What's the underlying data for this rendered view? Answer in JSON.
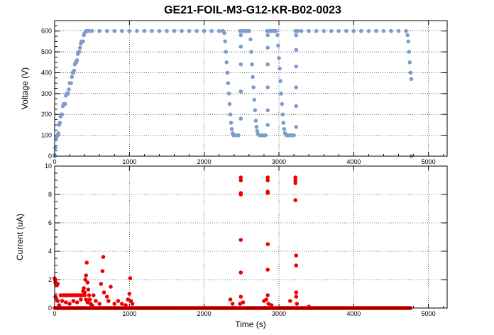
{
  "chart_data": [
    {
      "type": "scatter",
      "title": "GE21-FOIL-M3-G12-KR-B02-0023",
      "xlabel": "",
      "ylabel": "Voltage (V)",
      "xlim": [
        0,
        5250
      ],
      "ylim": [
        0,
        650
      ],
      "grid": true,
      "marker_color": "#7f9ccf",
      "x_ticks": [
        "0",
        "1000",
        "2000",
        "3000",
        "4000",
        "5000"
      ],
      "y_ticks": [
        "0",
        "100",
        "200",
        "300",
        "400",
        "500",
        "600"
      ],
      "points": [
        [
          0,
          0
        ],
        [
          0,
          5
        ],
        [
          10,
          40
        ],
        [
          20,
          80
        ],
        [
          30,
          95
        ],
        [
          40,
          100
        ],
        [
          50,
          110
        ],
        [
          60,
          150
        ],
        [
          70,
          160
        ],
        [
          80,
          190
        ],
        [
          90,
          200
        ],
        [
          100,
          200
        ],
        [
          110,
          240
        ],
        [
          120,
          250
        ],
        [
          130,
          250
        ],
        [
          140,
          250
        ],
        [
          150,
          290
        ],
        [
          160,
          300
        ],
        [
          170,
          300
        ],
        [
          180,
          300
        ],
        [
          190,
          320
        ],
        [
          200,
          350
        ],
        [
          210,
          350
        ],
        [
          220,
          350
        ],
        [
          230,
          380
        ],
        [
          240,
          400
        ],
        [
          250,
          400
        ],
        [
          260,
          410
        ],
        [
          270,
          440
        ],
        [
          280,
          450
        ],
        [
          290,
          450
        ],
        [
          300,
          460
        ],
        [
          310,
          490
        ],
        [
          320,
          500
        ],
        [
          330,
          500
        ],
        [
          340,
          520
        ],
        [
          350,
          540
        ],
        [
          360,
          550
        ],
        [
          370,
          550
        ],
        [
          380,
          550
        ],
        [
          390,
          580
        ],
        [
          400,
          590
        ],
        [
          420,
          600
        ],
        [
          440,
          600
        ],
        [
          460,
          600
        ],
        [
          500,
          600
        ],
        [
          600,
          600
        ],
        [
          700,
          600
        ],
        [
          800,
          600
        ],
        [
          900,
          600
        ],
        [
          1000,
          600
        ],
        [
          1100,
          600
        ],
        [
          1200,
          600
        ],
        [
          1300,
          600
        ],
        [
          1400,
          600
        ],
        [
          1500,
          600
        ],
        [
          1600,
          600
        ],
        [
          1700,
          600
        ],
        [
          1800,
          600
        ],
        [
          1900,
          600
        ],
        [
          2000,
          600
        ],
        [
          2100,
          600
        ],
        [
          2200,
          600
        ],
        [
          2250,
          600
        ],
        [
          2270,
          590
        ],
        [
          2280,
          550
        ],
        [
          2290,
          500
        ],
        [
          2300,
          450
        ],
        [
          2310,
          400
        ],
        [
          2320,
          350
        ],
        [
          2330,
          300
        ],
        [
          2340,
          250
        ],
        [
          2350,
          200
        ],
        [
          2360,
          160
        ],
        [
          2370,
          130
        ],
        [
          2380,
          110
        ],
        [
          2390,
          100
        ],
        [
          2400,
          100
        ],
        [
          2420,
          100
        ],
        [
          2440,
          100
        ],
        [
          2460,
          100
        ],
        [
          2480,
          600
        ],
        [
          2490,
          580
        ],
        [
          2490,
          525
        ],
        [
          2490,
          440
        ],
        [
          2490,
          310
        ],
        [
          2490,
          180
        ],
        [
          2500,
          600
        ],
        [
          2520,
          600
        ],
        [
          2550,
          600
        ],
        [
          2580,
          600
        ],
        [
          2600,
          600
        ],
        [
          2620,
          560
        ],
        [
          2630,
          500
        ],
        [
          2640,
          440
        ],
        [
          2650,
          380
        ],
        [
          2660,
          330
        ],
        [
          2670,
          270
        ],
        [
          2680,
          220
        ],
        [
          2690,
          170
        ],
        [
          2700,
          140
        ],
        [
          2710,
          120
        ],
        [
          2720,
          105
        ],
        [
          2740,
          100
        ],
        [
          2760,
          100
        ],
        [
          2780,
          100
        ],
        [
          2800,
          100
        ],
        [
          2820,
          100
        ],
        [
          2840,
          600
        ],
        [
          2850,
          580
        ],
        [
          2850,
          520
        ],
        [
          2850,
          440
        ],
        [
          2850,
          330
        ],
        [
          2850,
          220
        ],
        [
          2850,
          150
        ],
        [
          2870,
          600
        ],
        [
          2900,
          600
        ],
        [
          2920,
          600
        ],
        [
          2940,
          600
        ],
        [
          2960,
          600
        ],
        [
          2980,
          580
        ],
        [
          2990,
          530
        ],
        [
          3000,
          470
        ],
        [
          3010,
          420
        ],
        [
          3020,
          360
        ],
        [
          3030,
          300
        ],
        [
          3040,
          250
        ],
        [
          3050,
          200
        ],
        [
          3060,
          160
        ],
        [
          3070,
          130
        ],
        [
          3080,
          110
        ],
        [
          3100,
          100
        ],
        [
          3120,
          100
        ],
        [
          3140,
          100
        ],
        [
          3160,
          100
        ],
        [
          3180,
          100
        ],
        [
          3200,
          100
        ],
        [
          3220,
          600
        ],
        [
          3230,
          580
        ],
        [
          3230,
          510
        ],
        [
          3230,
          430
        ],
        [
          3230,
          330
        ],
        [
          3230,
          240
        ],
        [
          3230,
          140
        ],
        [
          3250,
          600
        ],
        [
          3300,
          600
        ],
        [
          3400,
          600
        ],
        [
          3500,
          600
        ],
        [
          3600,
          600
        ],
        [
          3700,
          600
        ],
        [
          3800,
          600
        ],
        [
          3900,
          600
        ],
        [
          4000,
          600
        ],
        [
          4100,
          600
        ],
        [
          4200,
          600
        ],
        [
          4300,
          600
        ],
        [
          4400,
          600
        ],
        [
          4500,
          600
        ],
        [
          4600,
          600
        ],
        [
          4700,
          600
        ],
        [
          4720,
          580
        ],
        [
          4730,
          550
        ],
        [
          4740,
          500
        ],
        [
          4750,
          450
        ],
        [
          4760,
          400
        ],
        [
          4770,
          370
        ],
        [
          4770,
          0
        ]
      ]
    },
    {
      "type": "scatter",
      "xlabel": "Time (s)",
      "ylabel": "Current (uA)",
      "xlim": [
        0,
        5250
      ],
      "ylim": [
        0,
        10
      ],
      "grid": true,
      "marker_color": "#ee0000",
      "x_ticks": [
        "0",
        "1000",
        "2000",
        "3000",
        "4000",
        "5000"
      ],
      "y_ticks": [
        "0",
        "2",
        "4",
        "6",
        "8",
        "10"
      ],
      "baseline": {
        "y": 0.0,
        "x_from": 0,
        "x_to": 4760,
        "step": 8
      },
      "points": [
        [
          0,
          2.1
        ],
        [
          5,
          2.0
        ],
        [
          10,
          1.8
        ],
        [
          15,
          1.8
        ],
        [
          20,
          1.7
        ],
        [
          30,
          1.6
        ],
        [
          40,
          1.7
        ],
        [
          10,
          0.8
        ],
        [
          20,
          0.7
        ],
        [
          40,
          0.5
        ],
        [
          60,
          0.2
        ],
        [
          80,
          0.9
        ],
        [
          100,
          0.9
        ],
        [
          120,
          0.9
        ],
        [
          140,
          0.9
        ],
        [
          160,
          0.9
        ],
        [
          180,
          0.9
        ],
        [
          200,
          0.9
        ],
        [
          220,
          0.9
        ],
        [
          240,
          0.9
        ],
        [
          260,
          0.9
        ],
        [
          280,
          0.9
        ],
        [
          300,
          0.9
        ],
        [
          320,
          0.9
        ],
        [
          340,
          0.9
        ],
        [
          360,
          0.9
        ],
        [
          380,
          0.9
        ],
        [
          400,
          0.9
        ],
        [
          100,
          0.5
        ],
        [
          150,
          0.4
        ],
        [
          200,
          0.3
        ],
        [
          250,
          0.5
        ],
        [
          300,
          0.4
        ],
        [
          350,
          0.6
        ],
        [
          380,
          1.2
        ],
        [
          390,
          1.4
        ],
        [
          400,
          1.1
        ],
        [
          410,
          2.0
        ],
        [
          420,
          2.3
        ],
        [
          430,
          3.2
        ],
        [
          440,
          1.8
        ],
        [
          450,
          1.3
        ],
        [
          460,
          0.9
        ],
        [
          470,
          0.6
        ],
        [
          480,
          0.3
        ],
        [
          500,
          0.2
        ],
        [
          420,
          0.6
        ],
        [
          440,
          0.4
        ],
        [
          520,
          0.9
        ],
        [
          550,
          0.5
        ],
        [
          600,
          0.3
        ],
        [
          620,
          1.7
        ],
        [
          640,
          2.6
        ],
        [
          650,
          3.6
        ],
        [
          660,
          1.1
        ],
        [
          700,
          0.8
        ],
        [
          720,
          0.5
        ],
        [
          750,
          1.5
        ],
        [
          800,
          0.3
        ],
        [
          850,
          0.5
        ],
        [
          900,
          0.3
        ],
        [
          950,
          0.2
        ],
        [
          980,
          0.6
        ],
        [
          1000,
          1.0
        ],
        [
          1010,
          2.1
        ],
        [
          1020,
          0.5
        ],
        [
          1040,
          0.3
        ],
        [
          2350,
          0.6
        ],
        [
          2380,
          0.3
        ],
        [
          2490,
          9.2
        ],
        [
          2490,
          9.0
        ],
        [
          2490,
          8.1
        ],
        [
          2490,
          8.0
        ],
        [
          2490,
          4.8
        ],
        [
          2490,
          2.5
        ],
        [
          2490,
          0.8
        ],
        [
          2480,
          0.3
        ],
        [
          2520,
          0.4
        ],
        [
          2800,
          0.5
        ],
        [
          2830,
          0.6
        ],
        [
          2850,
          9.2
        ],
        [
          2850,
          9.0
        ],
        [
          2850,
          8.2
        ],
        [
          2850,
          8.1
        ],
        [
          2850,
          4.5
        ],
        [
          2850,
          2.7
        ],
        [
          2850,
          0.9
        ],
        [
          2860,
          0.3
        ],
        [
          2900,
          0.2
        ],
        [
          3150,
          0.5
        ],
        [
          3220,
          9.2
        ],
        [
          3220,
          9.0
        ],
        [
          3220,
          8.8
        ],
        [
          3220,
          7.6
        ],
        [
          3230,
          3.7
        ],
        [
          3230,
          3.0
        ],
        [
          3230,
          1.1
        ],
        [
          3230,
          0.8
        ],
        [
          3240,
          0.3
        ],
        [
          3400,
          0.1
        ]
      ]
    }
  ]
}
